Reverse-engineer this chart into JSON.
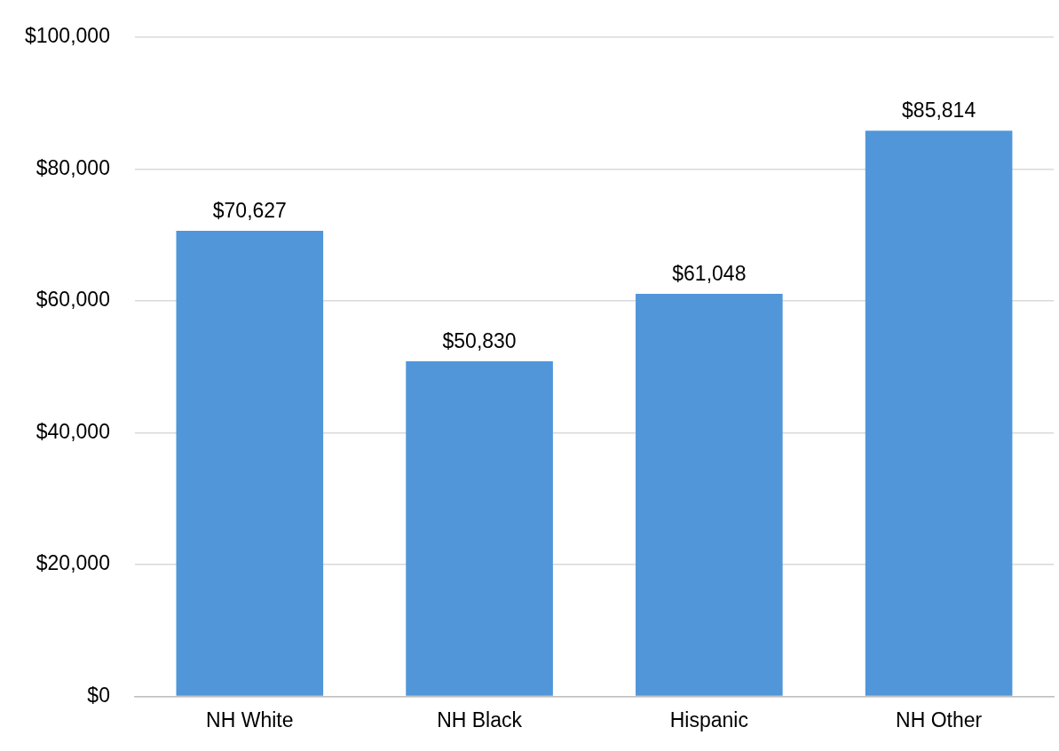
{
  "chart_data": {
    "type": "bar",
    "categories": [
      "NH White",
      "NH Black",
      "Hispanic",
      "NH Other"
    ],
    "values": [
      70627,
      50830,
      61048,
      85814
    ],
    "color": "#5096d9",
    "value_labels": [
      "$70,627",
      "$50,830",
      "$61,048",
      "$85,814"
    ],
    "ylim": [
      0,
      100000
    ],
    "yticks": [
      {
        "value": 0,
        "label": "$0"
      },
      {
        "value": 20000,
        "label": "$20,000"
      },
      {
        "value": 40000,
        "label": "$40,000"
      },
      {
        "value": 60000,
        "label": "$60,000"
      },
      {
        "value": 80000,
        "label": "$80,000"
      },
      {
        "value": 100000,
        "label": "$100,000"
      }
    ],
    "grid": "y",
    "legend": false
  }
}
